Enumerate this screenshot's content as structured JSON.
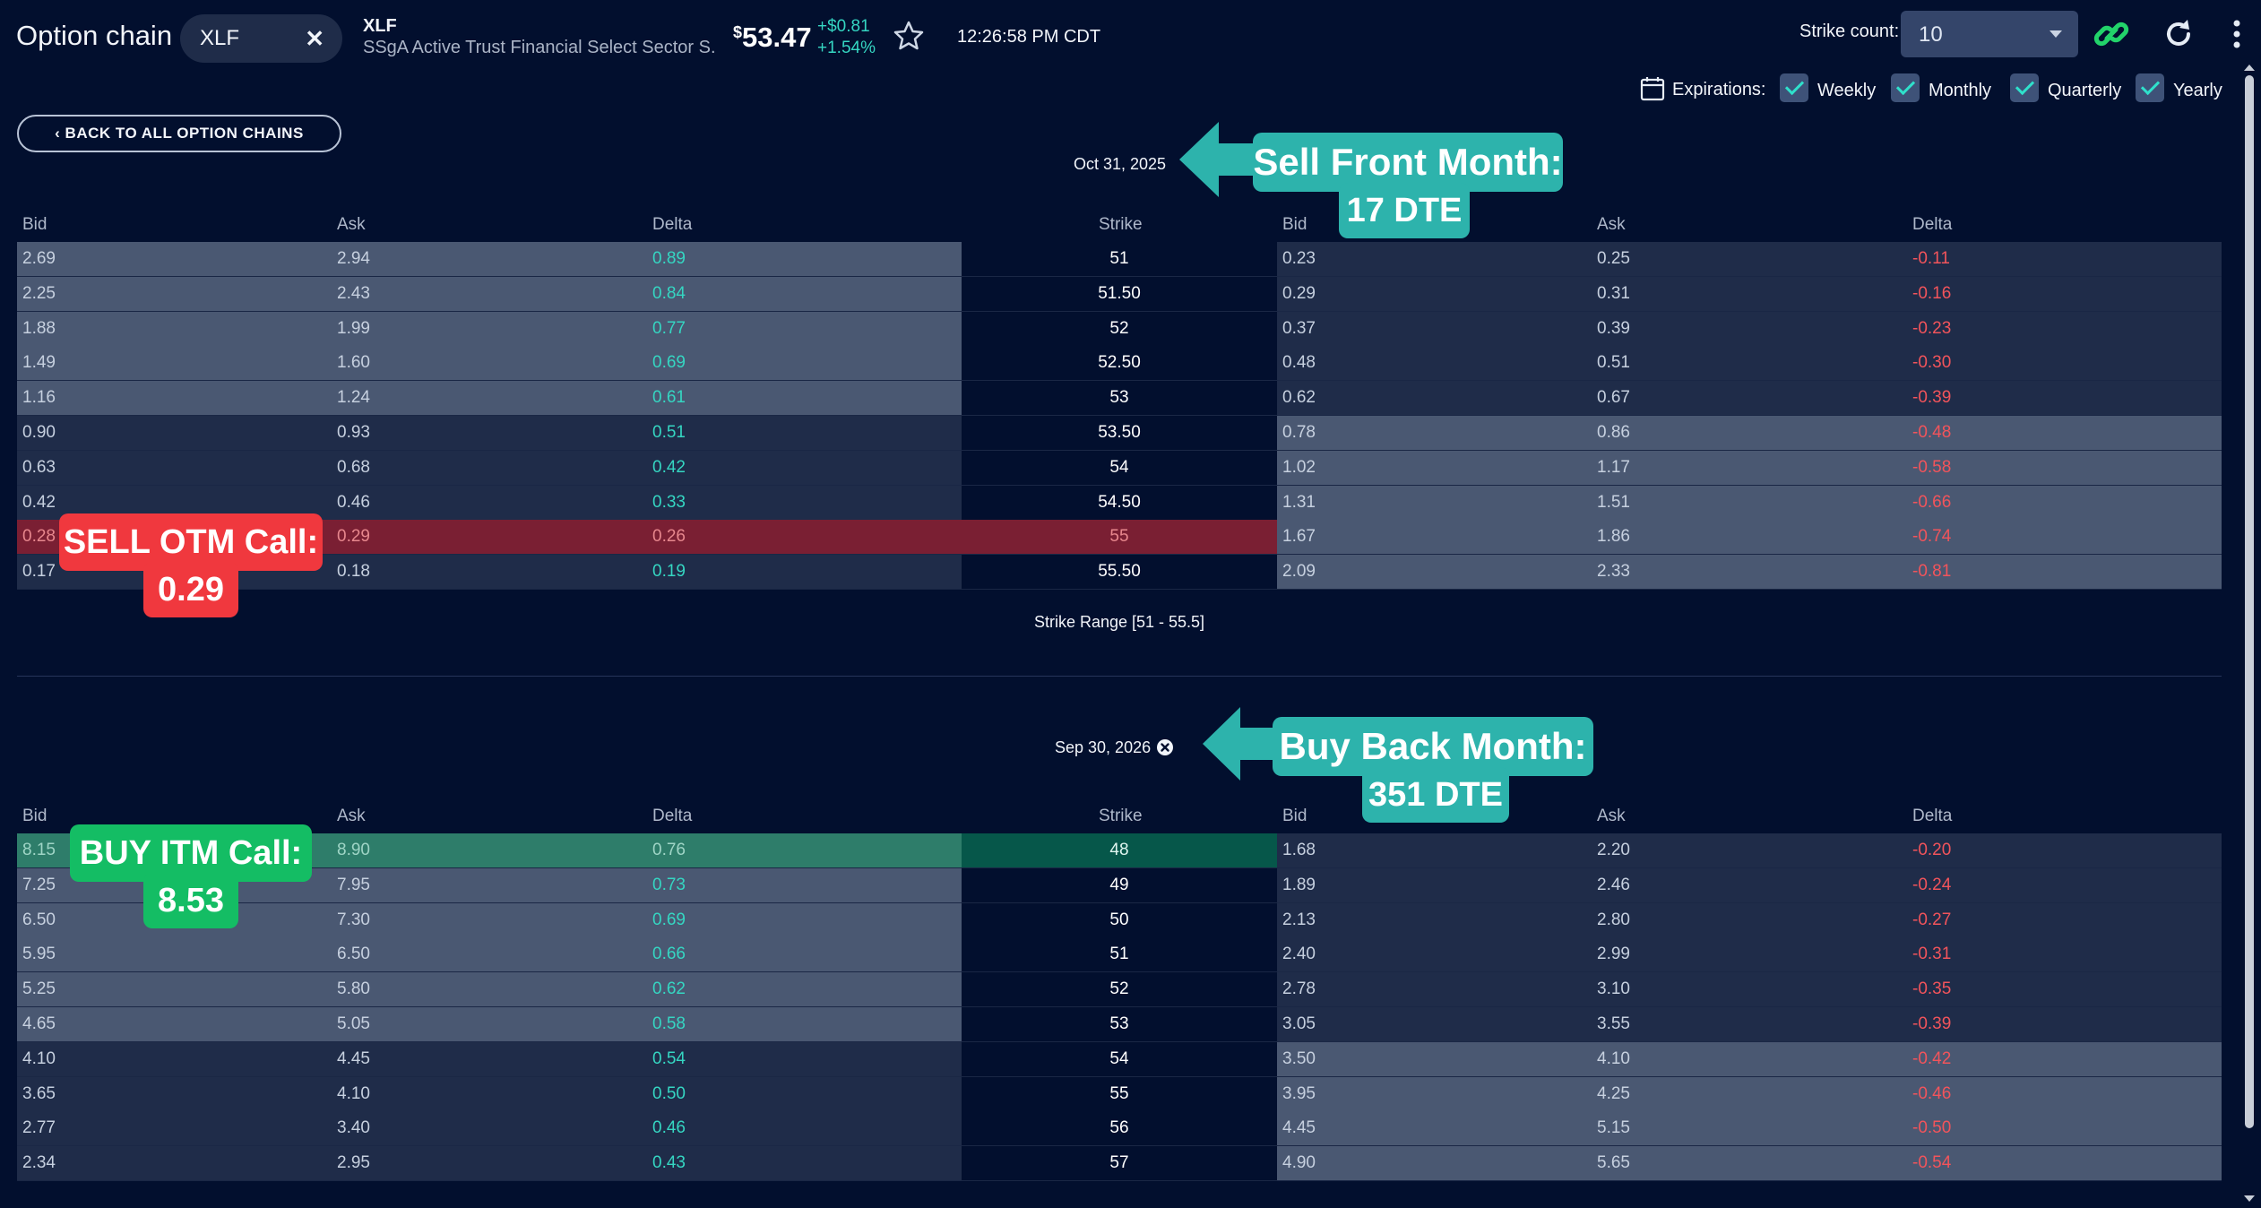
{
  "header": {
    "title": "Option chain",
    "symbol_input": "XLF",
    "clear_icon": "close-icon",
    "ticker": "XLF",
    "ticker_name": "SSgA Active Trust Financial Select Sector S...",
    "price_currency": "$",
    "price_value": "53.47",
    "change_abs": "+$0.81",
    "change_pct": "+1.54%",
    "favorite_icon": "star-icon",
    "time": "12:26:58 PM CDT",
    "strike_count_label": "Strike count:",
    "strike_count_value": "10",
    "link_icon": "link-icon",
    "refresh_icon": "refresh-icon",
    "menu_icon": "more-vertical-icon",
    "accent_color": "#35d6c2"
  },
  "expirations": {
    "label": "Expirations:",
    "icon": "calendar-icon",
    "options": [
      {
        "label": "Weekly",
        "checked": true
      },
      {
        "label": "Monthly",
        "checked": true
      },
      {
        "label": "Quarterly",
        "checked": true
      },
      {
        "label": "Yearly",
        "checked": true
      }
    ]
  },
  "back_button": "‹ BACK TO ALL OPTION CHAINS",
  "columns": {
    "bid": "Bid",
    "ask": "Ask",
    "delta": "Delta",
    "strike": "Strike"
  },
  "chain1": {
    "expiration": "Oct 31, 2025",
    "strike_range": "Strike Range [51 - 55.5]",
    "rows": [
      {
        "c_bid": "2.69",
        "c_ask": "2.94",
        "c_delta": "0.89",
        "strike": "51",
        "p_bid": "0.23",
        "p_ask": "0.25",
        "p_delta": "-0.11",
        "call_itm": true,
        "highlight": ""
      },
      {
        "c_bid": "2.25",
        "c_ask": "2.43",
        "c_delta": "0.84",
        "strike": "51.50",
        "p_bid": "0.29",
        "p_ask": "0.31",
        "p_delta": "-0.16",
        "call_itm": true,
        "highlight": ""
      },
      {
        "c_bid": "1.88",
        "c_ask": "1.99",
        "c_delta": "0.77",
        "strike": "52",
        "p_bid": "0.37",
        "p_ask": "0.39",
        "p_delta": "-0.23",
        "call_itm": true,
        "highlight": ""
      },
      {
        "c_bid": "1.49",
        "c_ask": "1.60",
        "c_delta": "0.69",
        "strike": "52.50",
        "p_bid": "0.48",
        "p_ask": "0.51",
        "p_delta": "-0.30",
        "call_itm": true,
        "highlight": ""
      },
      {
        "c_bid": "1.16",
        "c_ask": "1.24",
        "c_delta": "0.61",
        "strike": "53",
        "p_bid": "0.62",
        "p_ask": "0.67",
        "p_delta": "-0.39",
        "call_itm": true,
        "highlight": ""
      },
      {
        "c_bid": "0.90",
        "c_ask": "0.93",
        "c_delta": "0.51",
        "strike": "53.50",
        "p_bid": "0.78",
        "p_ask": "0.86",
        "p_delta": "-0.48",
        "call_itm": false,
        "highlight": ""
      },
      {
        "c_bid": "0.63",
        "c_ask": "0.68",
        "c_delta": "0.42",
        "strike": "54",
        "p_bid": "1.02",
        "p_ask": "1.17",
        "p_delta": "-0.58",
        "call_itm": false,
        "highlight": ""
      },
      {
        "c_bid": "0.42",
        "c_ask": "0.46",
        "c_delta": "0.33",
        "strike": "54.50",
        "p_bid": "1.31",
        "p_ask": "1.51",
        "p_delta": "-0.66",
        "call_itm": false,
        "highlight": ""
      },
      {
        "c_bid": "0.28",
        "c_ask": "0.29",
        "c_delta": "0.26",
        "strike": "55",
        "p_bid": "1.67",
        "p_ask": "1.86",
        "p_delta": "-0.74",
        "call_itm": false,
        "highlight": "sell"
      },
      {
        "c_bid": "0.17",
        "c_ask": "0.18",
        "c_delta": "0.19",
        "strike": "55.50",
        "p_bid": "2.09",
        "p_ask": "2.33",
        "p_delta": "-0.81",
        "call_itm": false,
        "highlight": ""
      }
    ]
  },
  "chain2": {
    "expiration": "Sep 30, 2026",
    "remove_icon": "close-circle-icon",
    "rows": [
      {
        "c_bid": "8.15",
        "c_ask": "8.90",
        "c_delta": "0.76",
        "strike": "48",
        "p_bid": "1.68",
        "p_ask": "2.20",
        "p_delta": "-0.20",
        "call_itm": true,
        "highlight": "buy"
      },
      {
        "c_bid": "7.25",
        "c_ask": "7.95",
        "c_delta": "0.73",
        "strike": "49",
        "p_bid": "1.89",
        "p_ask": "2.46",
        "p_delta": "-0.24",
        "call_itm": true,
        "highlight": ""
      },
      {
        "c_bid": "6.50",
        "c_ask": "7.30",
        "c_delta": "0.69",
        "strike": "50",
        "p_bid": "2.13",
        "p_ask": "2.80",
        "p_delta": "-0.27",
        "call_itm": true,
        "highlight": ""
      },
      {
        "c_bid": "5.95",
        "c_ask": "6.50",
        "c_delta": "0.66",
        "strike": "51",
        "p_bid": "2.40",
        "p_ask": "2.99",
        "p_delta": "-0.31",
        "call_itm": true,
        "highlight": ""
      },
      {
        "c_bid": "5.25",
        "c_ask": "5.80",
        "c_delta": "0.62",
        "strike": "52",
        "p_bid": "2.78",
        "p_ask": "3.10",
        "p_delta": "-0.35",
        "call_itm": true,
        "highlight": ""
      },
      {
        "c_bid": "4.65",
        "c_ask": "5.05",
        "c_delta": "0.58",
        "strike": "53",
        "p_bid": "3.05",
        "p_ask": "3.55",
        "p_delta": "-0.39",
        "call_itm": true,
        "highlight": ""
      },
      {
        "c_bid": "4.10",
        "c_ask": "4.45",
        "c_delta": "0.54",
        "strike": "54",
        "p_bid": "3.50",
        "p_ask": "4.10",
        "p_delta": "-0.42",
        "call_itm": false,
        "highlight": ""
      },
      {
        "c_bid": "3.65",
        "c_ask": "4.10",
        "c_delta": "0.50",
        "strike": "55",
        "p_bid": "3.95",
        "p_ask": "4.25",
        "p_delta": "-0.46",
        "call_itm": false,
        "highlight": ""
      },
      {
        "c_bid": "2.77",
        "c_ask": "3.40",
        "c_delta": "0.46",
        "strike": "56",
        "p_bid": "4.45",
        "p_ask": "5.15",
        "p_delta": "-0.50",
        "call_itm": false,
        "highlight": ""
      },
      {
        "c_bid": "2.34",
        "c_ask": "2.95",
        "c_delta": "0.43",
        "strike": "57",
        "p_bid": "4.90",
        "p_ask": "5.65",
        "p_delta": "-0.54",
        "call_itm": false,
        "highlight": ""
      }
    ]
  },
  "annotations": {
    "sell_front": {
      "line1": "Sell Front Month:",
      "line2": "17 DTE",
      "color": "#2db3ac"
    },
    "buy_back": {
      "line1": "Buy Back Month:",
      "line2": "351 DTE",
      "color": "#2db3ac"
    },
    "sell_otm": {
      "line1": "SELL OTM Call:",
      "line2": "0.29",
      "color": "#f0383e"
    },
    "buy_itm": {
      "line1": "BUY ITM Call:",
      "line2": "8.53",
      "color": "#14bd64"
    }
  }
}
